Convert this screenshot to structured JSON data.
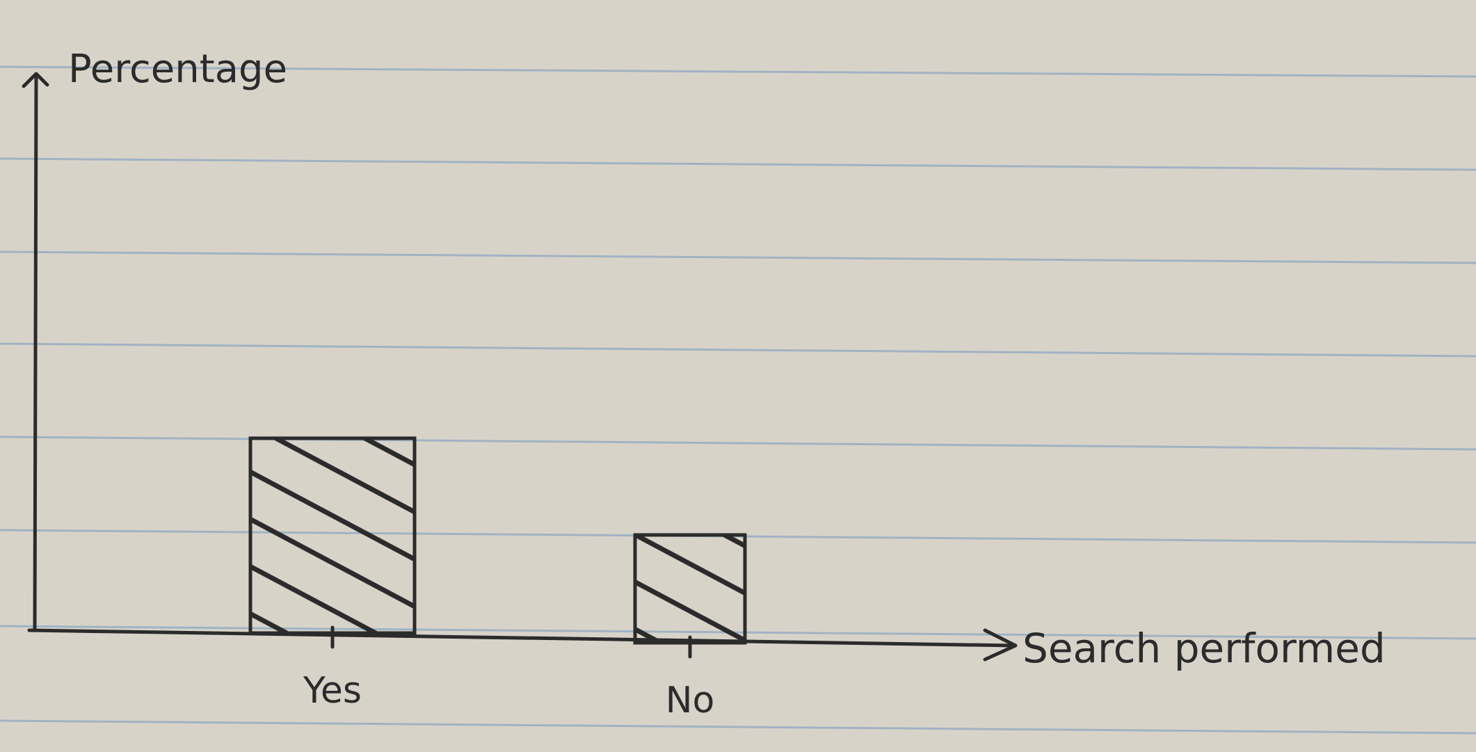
{
  "chart_data": {
    "type": "bar",
    "categories": [
      "Yes",
      "No"
    ],
    "values": [
      56,
      31
    ],
    "xlabel": "Search performed",
    "ylabel": "Percentage",
    "ylim": [
      0,
      160
    ],
    "grid": false,
    "legend": "none",
    "colors": {
      "paper": "#d8d3c9",
      "ruled_line": "#9fb3c4",
      "ink": "#2b2b2b"
    }
  }
}
